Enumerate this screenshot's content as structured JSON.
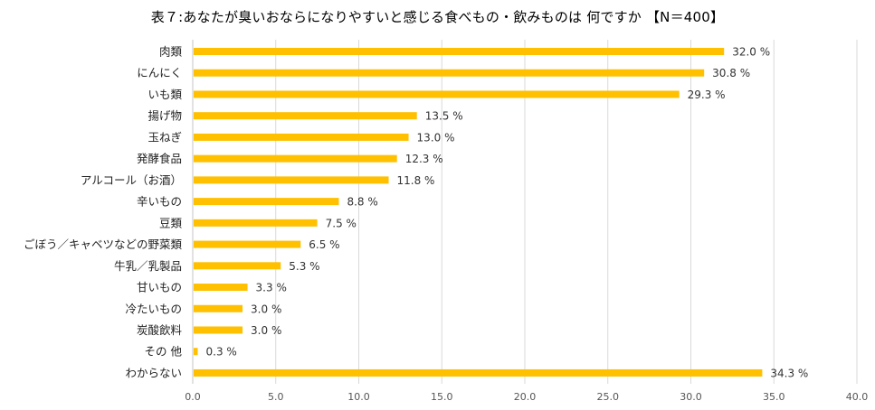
{
  "chart_data": {
    "type": "bar",
    "orientation": "horizontal",
    "title": "表７:あなたが臭いおならになりやすいと感じる食べもの・飲みものは 何ですか 【N＝400】",
    "categories": [
      "肉類",
      "にんにく",
      "いも類",
      "揚げ物",
      "玉ねぎ",
      "発酵食品",
      "アルコール（お酒）",
      "辛いもの",
      "豆類",
      "ごぼう／キャベツなどの野菜類",
      "牛乳／乳製品",
      "甘いもの",
      "冷たいもの",
      "炭酸飲料",
      "その 他",
      "わからない"
    ],
    "values": [
      32.0,
      30.8,
      29.3,
      13.5,
      13.0,
      12.3,
      11.8,
      8.8,
      7.5,
      6.5,
      5.3,
      3.3,
      3.0,
      3.0,
      0.3,
      34.3
    ],
    "value_labels": [
      "32.0 %",
      "30.8 %",
      "29.3 %",
      "13.5 %",
      "13.0 %",
      "12.3 %",
      "11.8 %",
      "8.8 %",
      "7.5 %",
      "6.5 %",
      "5.3 %",
      "3.3 %",
      "3.0 %",
      "3.0 %",
      "0.3 %",
      "34.3 %"
    ],
    "xlim": [
      0,
      40
    ],
    "xticks": [
      0,
      5,
      10,
      15,
      20,
      25,
      30,
      35,
      40
    ],
    "xtick_labels": [
      "0.0",
      "5.0",
      "10.0",
      "15.0",
      "20.0",
      "25.0",
      "30.0",
      "35.0",
      "40.0"
    ],
    "xlabel": "",
    "ylabel": "",
    "grid": true,
    "legend": "none",
    "bar_color": "#FFC000",
    "grid_color": "#D9D9D9"
  }
}
